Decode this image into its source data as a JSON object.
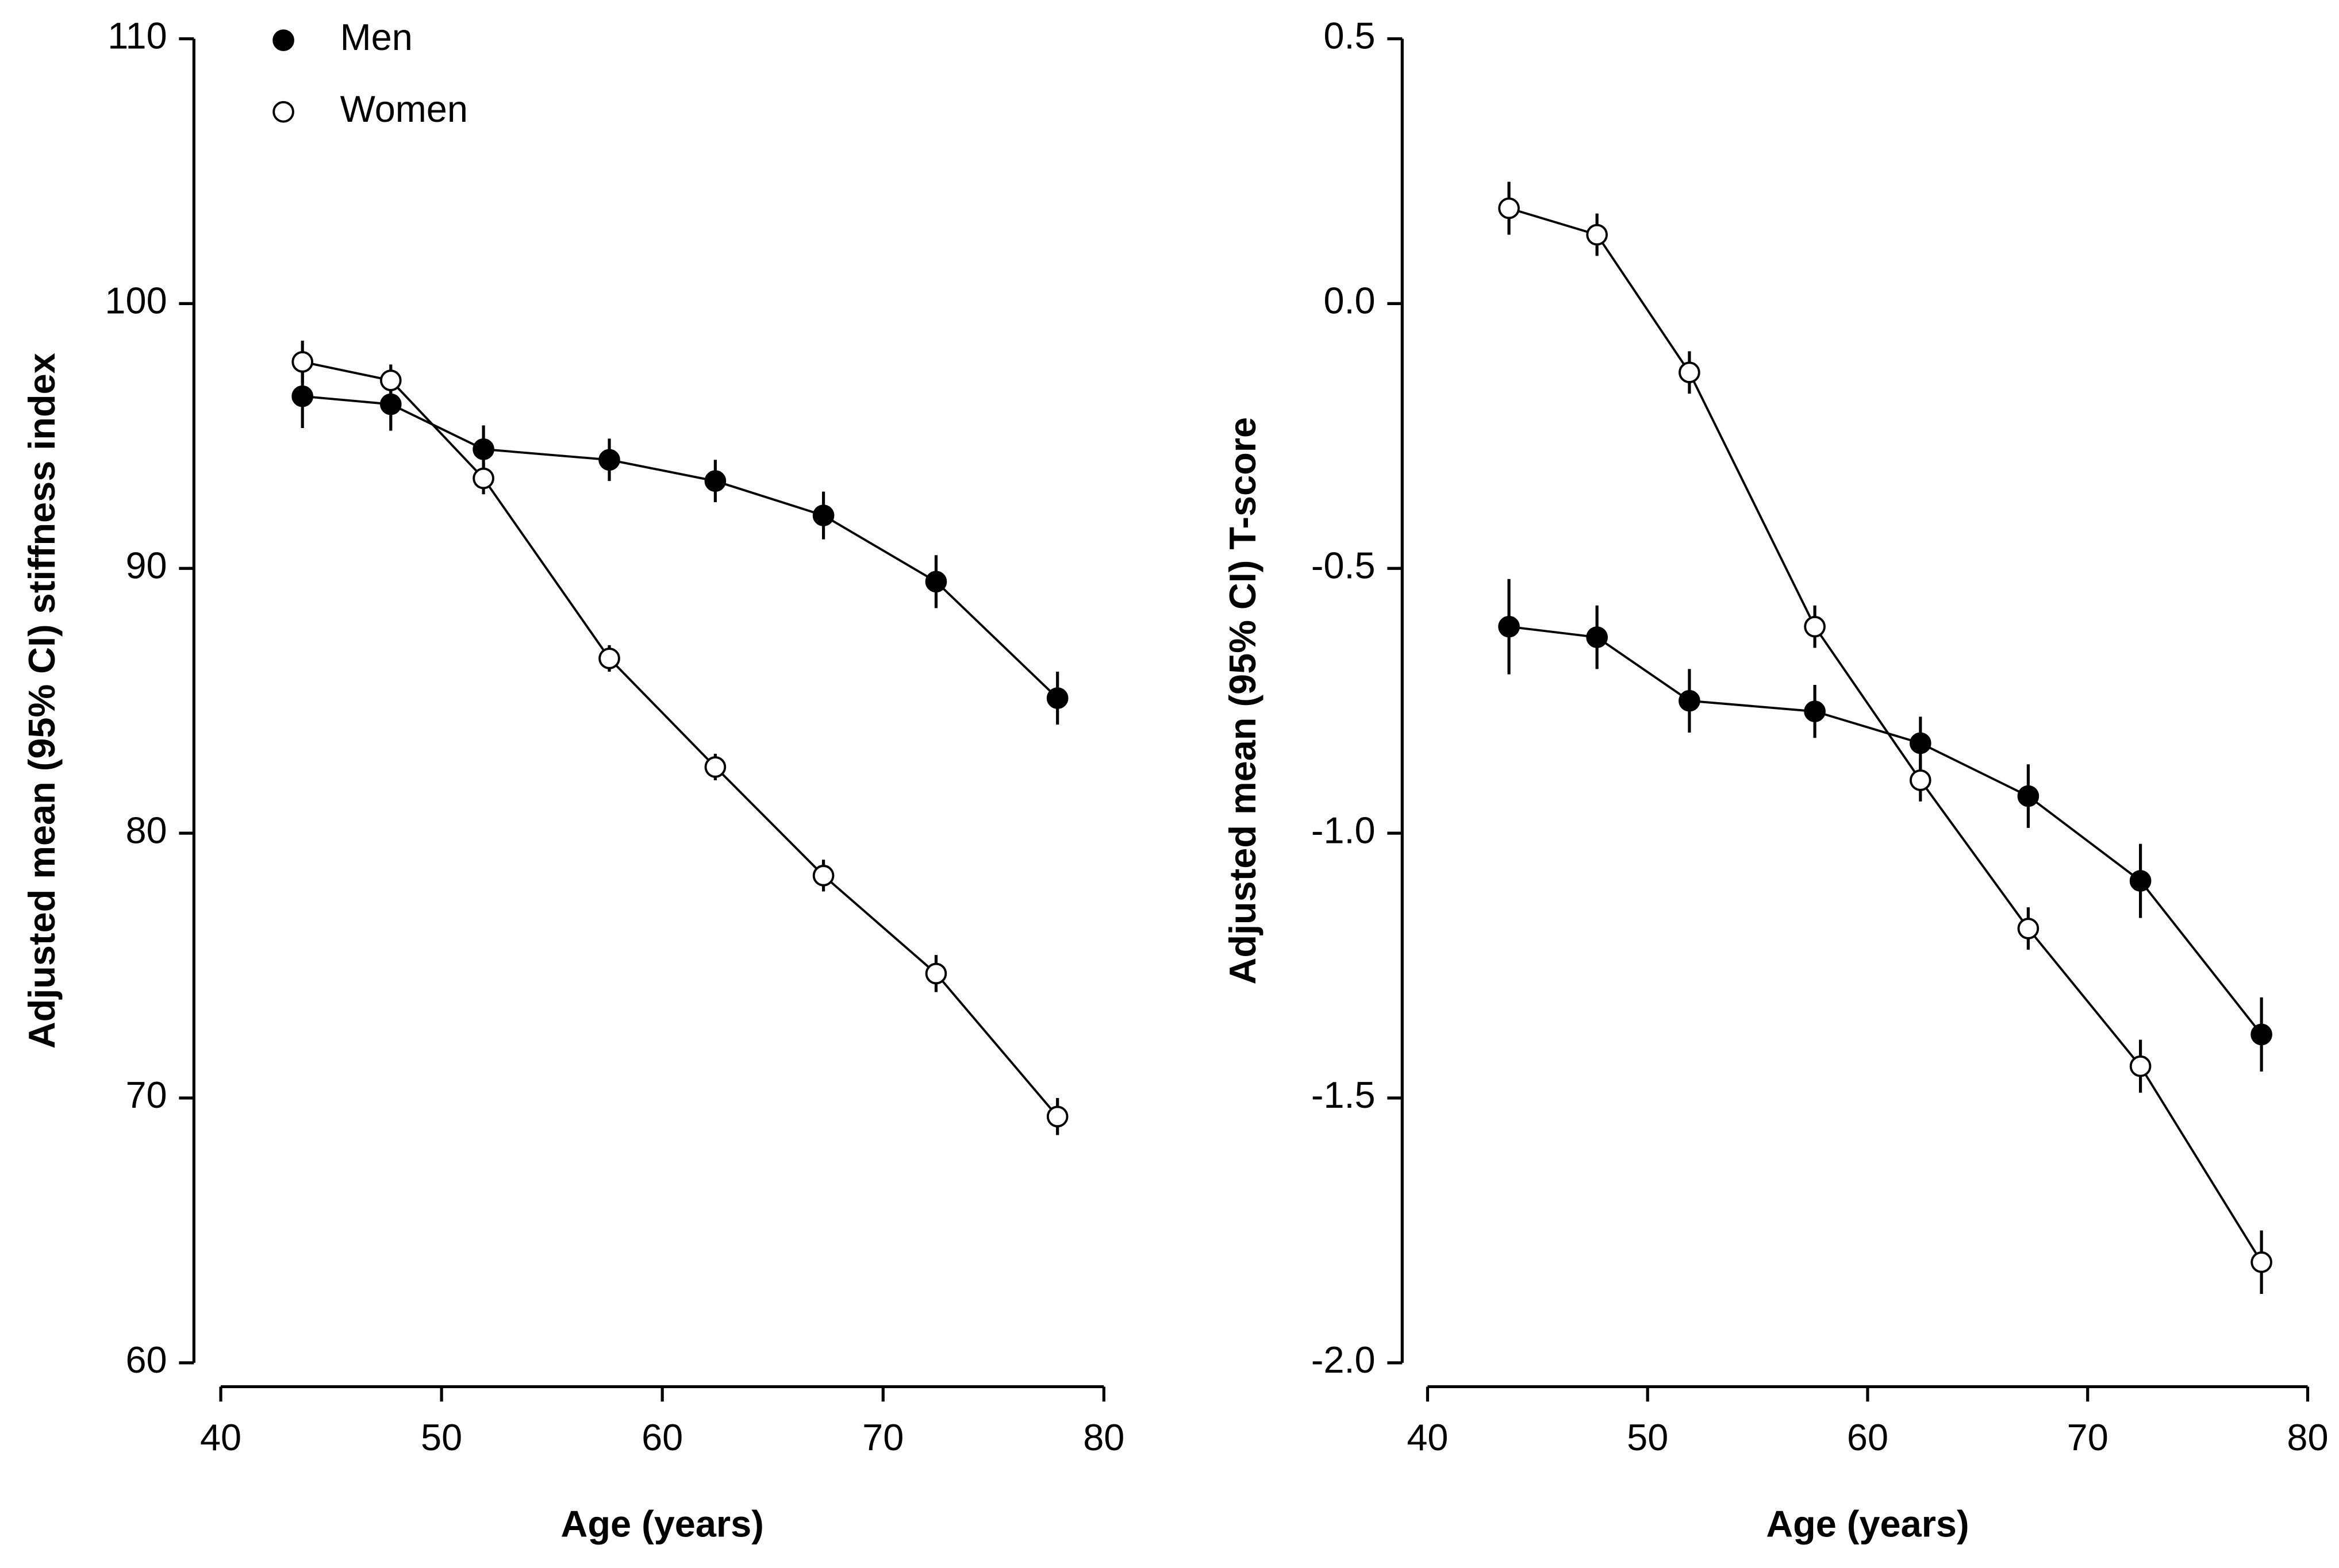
{
  "chart_data": [
    {
      "type": "line",
      "xlabel": "Age (years)",
      "ylabel": "Adjusted mean (95% CI) stiffness index",
      "x": [
        43.7,
        47.7,
        51.9,
        57.6,
        62.4,
        67.3,
        72.4,
        77.9
      ],
      "series": [
        {
          "name": "Men",
          "color": "#000000",
          "fill": "#000000",
          "values": [
            96.5,
            96.2,
            94.5,
            94.1,
            93.3,
            92.0,
            89.5,
            85.1
          ],
          "errors": [
            1.2,
            1.0,
            0.9,
            0.8,
            0.8,
            0.9,
            1.0,
            1.0
          ]
        },
        {
          "name": "Women",
          "color": "#000000",
          "fill": "#ffffff",
          "values": [
            97.8,
            97.1,
            93.4,
            86.6,
            82.5,
            78.4,
            74.7,
            69.3
          ],
          "errors": [
            0.8,
            0.6,
            0.6,
            0.5,
            0.5,
            0.6,
            0.7,
            0.7
          ]
        }
      ],
      "xlim": [
        40,
        80
      ],
      "xticks": [
        40,
        50,
        60,
        70,
        80
      ],
      "ylim": [
        60,
        110
      ],
      "yticks": [
        60,
        70,
        80,
        90,
        100,
        110
      ],
      "legend": "upper left"
    },
    {
      "type": "line",
      "xlabel": "Age (years)",
      "ylabel": "Adjusted mean (95% CI) T-score",
      "x": [
        43.7,
        47.7,
        51.9,
        57.6,
        62.4,
        67.3,
        72.4,
        77.9
      ],
      "series": [
        {
          "color": "#000000",
          "fill": "#000000",
          "values": [
            -0.61,
            -0.63,
            -0.75,
            -0.77,
            -0.83,
            -0.93,
            -1.09,
            -1.38
          ],
          "errors": [
            0.09,
            0.06,
            0.06,
            0.05,
            0.05,
            0.06,
            0.07,
            0.07
          ]
        },
        {
          "color": "#000000",
          "fill": "#ffffff",
          "values": [
            0.18,
            0.13,
            -0.13,
            -0.61,
            -0.9,
            -1.18,
            -1.44,
            -1.81
          ],
          "errors": [
            0.05,
            0.04,
            0.04,
            0.04,
            0.04,
            0.04,
            0.05,
            0.06
          ]
        }
      ],
      "xlim": [
        40,
        80
      ],
      "xticks": [
        40,
        50,
        60,
        70,
        80
      ],
      "ylim": [
        -2.0,
        0.5
      ],
      "yticks": [
        {
          "value": -2.0,
          "label": "-2.0"
        },
        -1.5,
        {
          "value": -1.0,
          "label": "-1.0"
        },
        -0.5,
        {
          "value": 0.0,
          "label": "0.0"
        },
        0.5
      ]
    }
  ]
}
